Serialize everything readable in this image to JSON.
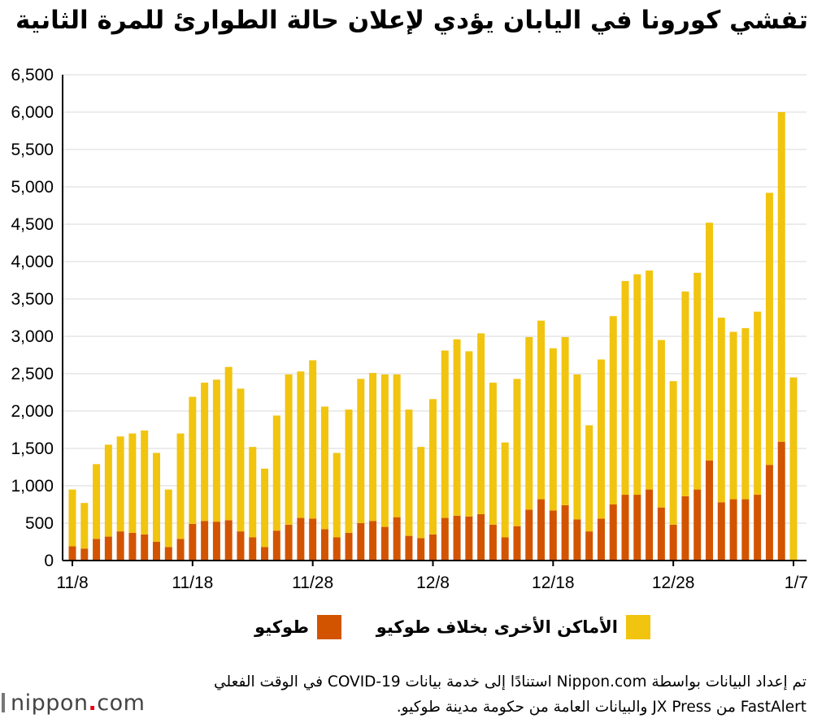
{
  "title": "تفشي كورونا في اليابان يؤدي لإعلان حالة الطوارئ للمرة الثانية",
  "colors": {
    "tokyo": "#D35400",
    "other": "#F1C40F",
    "grid": "#d9d9d9",
    "axis": "#000000"
  },
  "legend": {
    "tokyo": "طوكيو",
    "other": "الأماكن الأخرى بخلاف طوكيو"
  },
  "source": {
    "line1": "تم إعداد البيانات بواسطة Nippon.com استنادًا إلى خدمة بيانات COVID-19 في الوقت الفعلي",
    "line2": "FastAlert من JX Press والبيانات العامة من حكومة مدينة طوكيو."
  },
  "logo": {
    "main": "nippon",
    "dot": ".",
    "suffix": "com"
  },
  "chart_data": {
    "type": "bar",
    "stacked": true,
    "title": "تفشي كورونا في اليابان يؤدي لإعلان حالة الطوارئ للمرة الثانية",
    "ylim": [
      0,
      6500
    ],
    "yticks": [
      "0",
      "500",
      "1,000",
      "1,500",
      "2,000",
      "2,500",
      "3,000",
      "3,500",
      "4,000",
      "4,500",
      "5,000",
      "5,500",
      "6,000",
      "6,500"
    ],
    "ytick_values": [
      0,
      500,
      1000,
      1500,
      2000,
      2500,
      3000,
      3500,
      4000,
      4500,
      5000,
      5500,
      6000,
      6500
    ],
    "xticks": [
      {
        "label": "11/8",
        "index": 0
      },
      {
        "label": "11/18",
        "index": 10
      },
      {
        "label": "11/28",
        "index": 20
      },
      {
        "label": "12/8",
        "index": 30
      },
      {
        "label": "12/18",
        "index": 40
      },
      {
        "label": "12/28",
        "index": 50
      },
      {
        "label": "1/7",
        "index": 60
      }
    ],
    "categories": [
      "11/8",
      "11/9",
      "11/10",
      "11/11",
      "11/12",
      "11/13",
      "11/14",
      "11/15",
      "11/16",
      "11/17",
      "11/18",
      "11/19",
      "11/20",
      "11/21",
      "11/22",
      "11/23",
      "11/24",
      "11/25",
      "11/26",
      "11/27",
      "11/28",
      "11/29",
      "11/30",
      "12/1",
      "12/2",
      "12/3",
      "12/4",
      "12/5",
      "12/6",
      "12/7",
      "12/8",
      "12/9",
      "12/10",
      "12/11",
      "12/12",
      "12/13",
      "12/14",
      "12/15",
      "12/16",
      "12/17",
      "12/18",
      "12/19",
      "12/20",
      "12/21",
      "12/22",
      "12/23",
      "12/24",
      "12/25",
      "12/26",
      "12/27",
      "12/28",
      "12/29",
      "12/30",
      "12/31",
      "1/1",
      "1/2",
      "1/3",
      "1/4",
      "1/5",
      "1/6",
      "1/7"
    ],
    "series": [
      {
        "name": "طوكيو",
        "values": [
          190,
          160,
          290,
          320,
          390,
          370,
          350,
          250,
          180,
          290,
          490,
          530,
          520,
          540,
          390,
          310,
          180,
          400,
          480,
          570,
          560,
          420,
          310,
          370,
          500,
          530,
          450,
          580,
          330,
          300,
          350,
          570,
          600,
          590,
          620,
          480,
          310,
          460,
          680,
          820,
          670,
          740,
          550,
          390,
          560,
          750,
          880,
          880,
          950,
          710,
          480,
          860,
          950,
          1340,
          780,
          820,
          820,
          880,
          1280,
          1590,
          0
        ]
      },
      {
        "name": "الأماكن الأخرى بخلاف طوكيو",
        "values": [
          760,
          610,
          1000,
          1230,
          1270,
          1330,
          1390,
          1190,
          770,
          1410,
          1700,
          1850,
          1900,
          2050,
          1910,
          1210,
          1050,
          1540,
          2010,
          1960,
          2120,
          1640,
          1130,
          1650,
          1930,
          1980,
          2040,
          1910,
          1690,
          1220,
          1810,
          2240,
          2360,
          2210,
          2420,
          1900,
          1270,
          1970,
          2310,
          2390,
          2170,
          2250,
          1940,
          1420,
          2130,
          2520,
          2860,
          2950,
          2930,
          2240,
          1920,
          2740,
          2900,
          3180,
          2470,
          2240,
          2290,
          2450,
          3640,
          4410,
          2450
        ]
      }
    ],
    "legend_position": "bottom",
    "grid": true
  }
}
